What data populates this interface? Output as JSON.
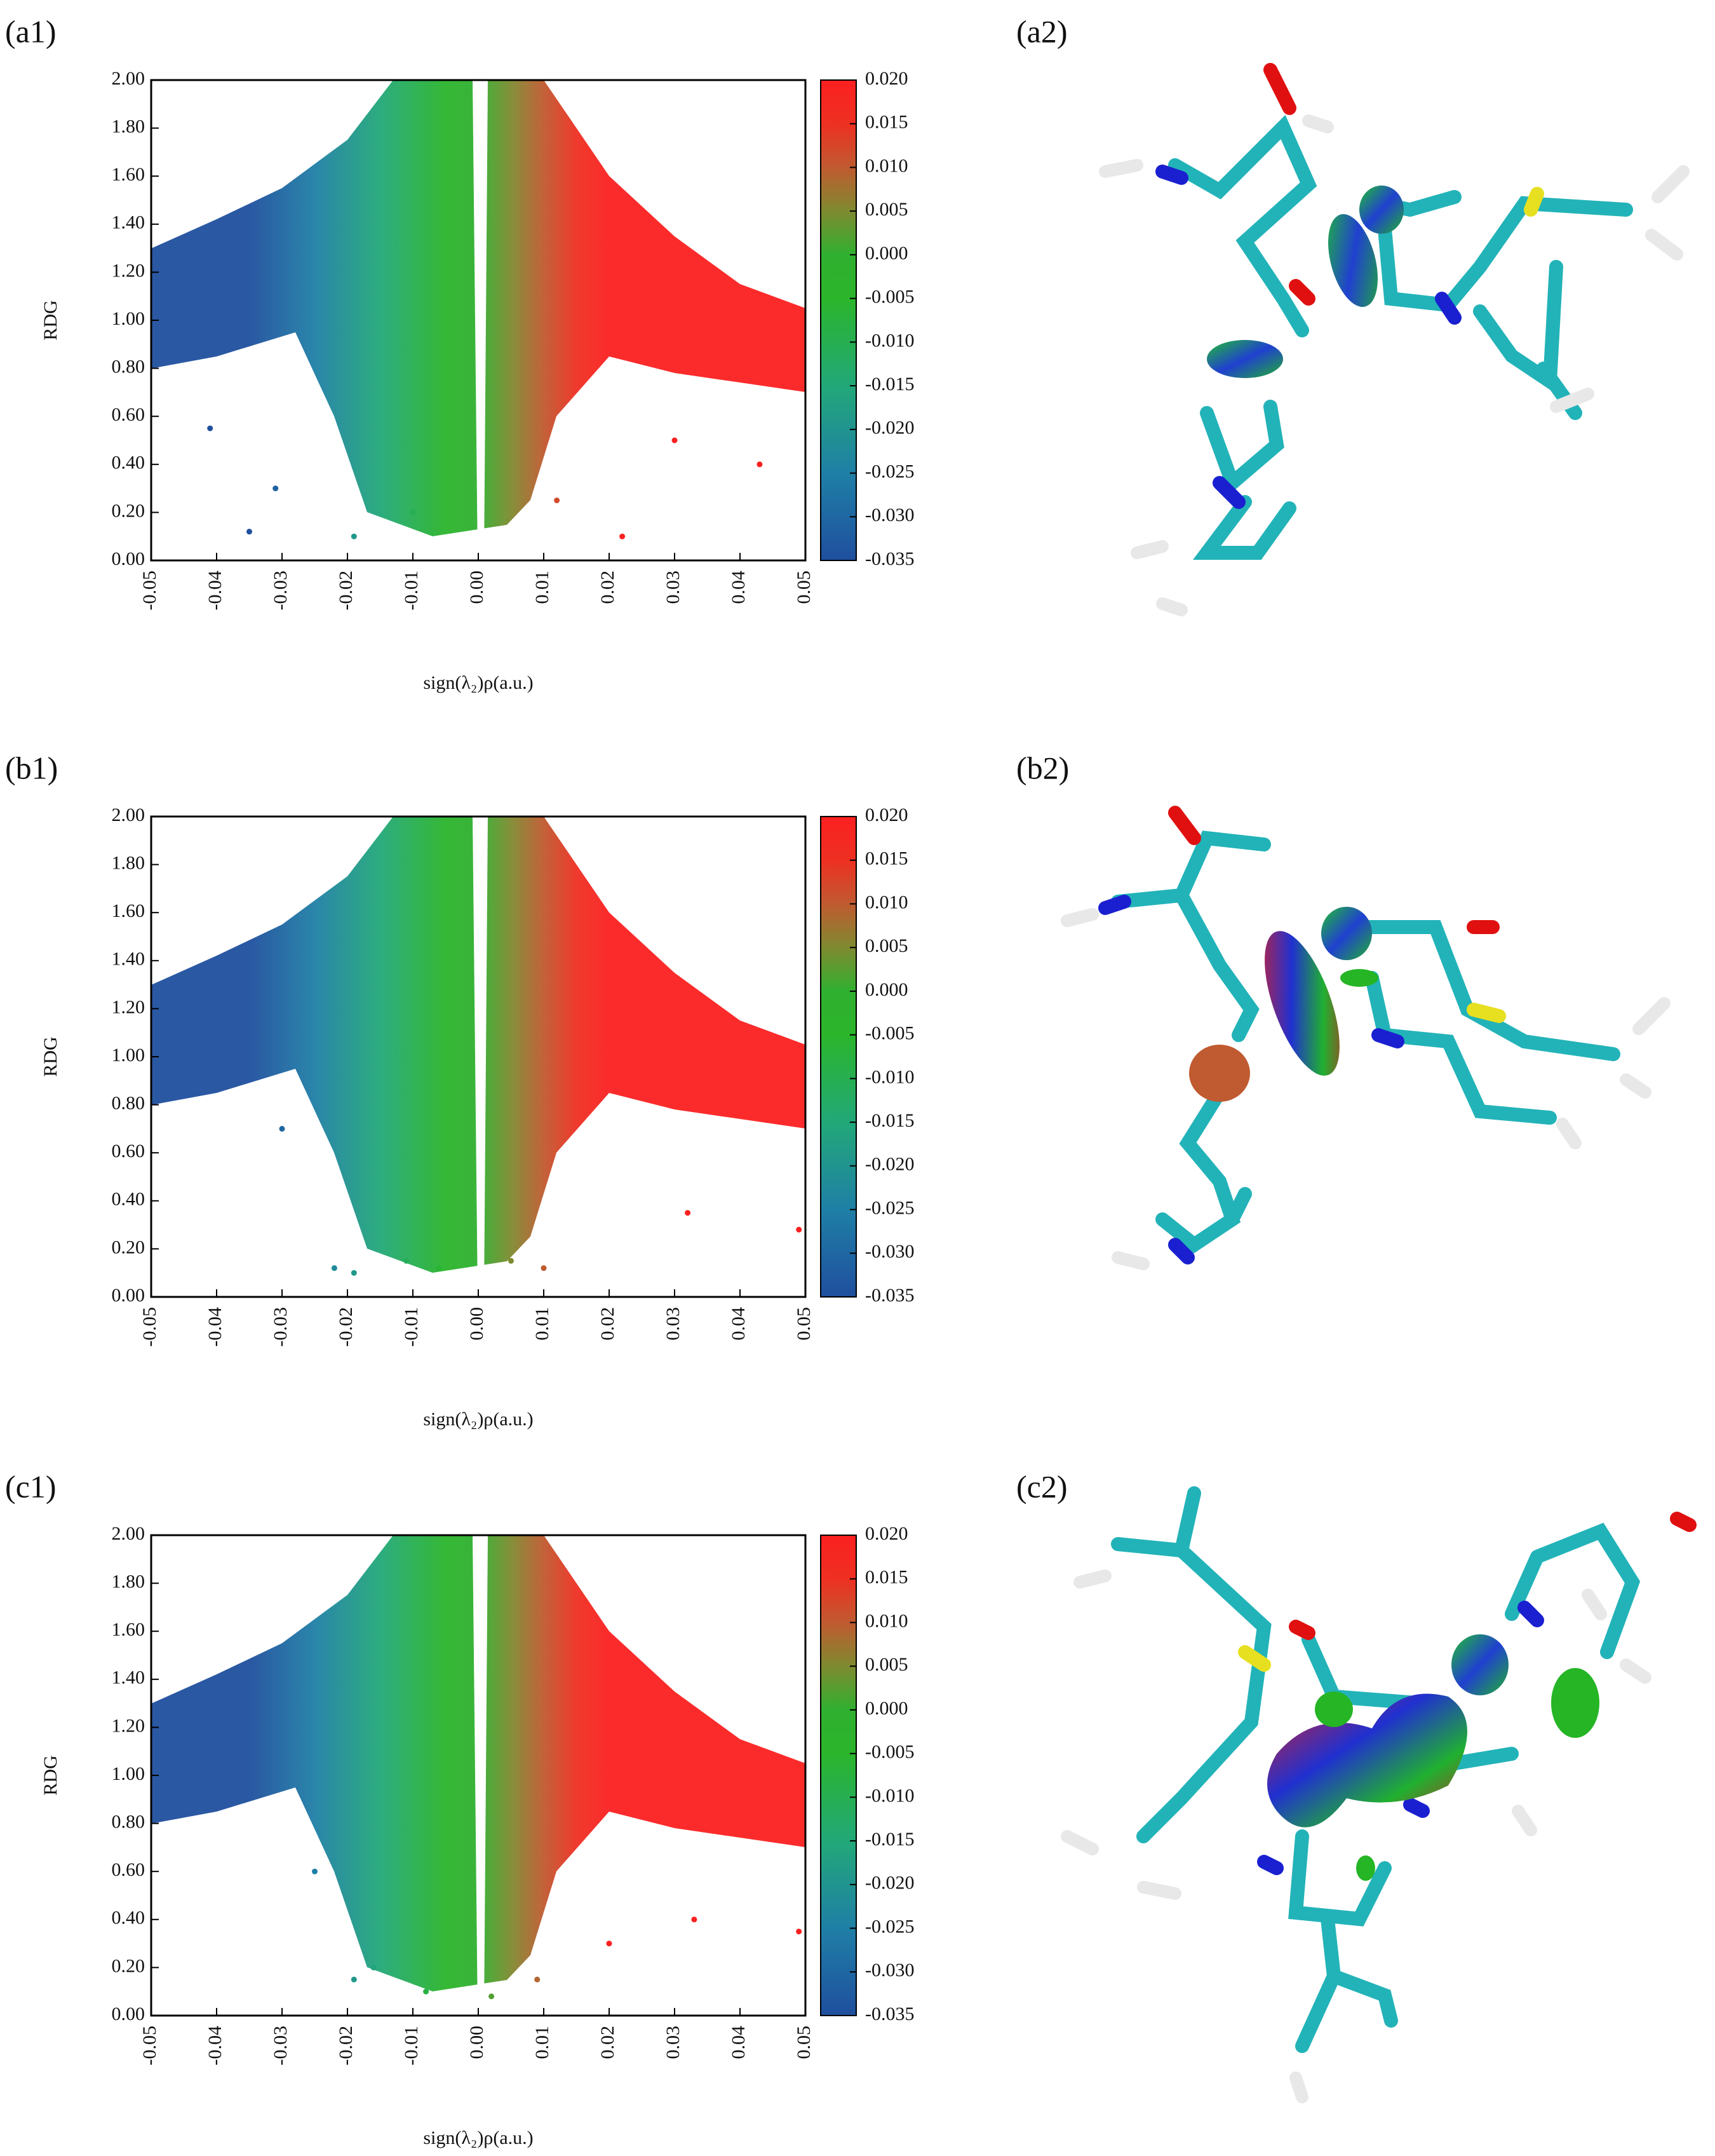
{
  "chart_data": [
    {
      "type": "scatter",
      "panel_label": "(a1)",
      "xlabel": "sign(λ₂)ρ(a.u.)",
      "ylabel": "RDG",
      "xlim": [
        -0.05,
        0.05
      ],
      "ylim": [
        0,
        2
      ],
      "xticks": [
        -0.05,
        -0.04,
        -0.03,
        -0.02,
        -0.01,
        {
          "value": 0,
          "label": "0.00"
        },
        0.01,
        0.02,
        0.03,
        0.04,
        0.05
      ],
      "yticks": [
        {
          "value": 0,
          "label": "0.00"
        },
        {
          "value": 0.2,
          "label": "0.20"
        },
        {
          "value": 0.4,
          "label": "0.40"
        },
        {
          "value": 0.6,
          "label": "0.60"
        },
        {
          "value": 0.8,
          "label": "0.80"
        },
        {
          "value": 1,
          "label": "1.00"
        },
        {
          "value": 1.2,
          "label": "1.20"
        },
        {
          "value": 1.4,
          "label": "1.40"
        },
        {
          "value": 1.6,
          "label": "1.60"
        },
        {
          "value": 1.8,
          "label": "1.80"
        },
        {
          "value": 2,
          "label": "2.00"
        }
      ],
      "x": [
        -0.035,
        -0.031,
        -0.019,
        -0.01,
        0.022,
        0.043,
        -0.041,
        0.012,
        0.03
      ],
      "y": [
        0.12,
        0.3,
        0.1,
        0.2,
        0.1,
        0.4,
        0.55,
        0.25,
        0.5
      ],
      "colorbar": {
        "lim": [
          -0.035,
          0.02
        ],
        "ticks": [
          {
            "value": 0.02,
            "label": "0.020"
          },
          0.015,
          {
            "value": 0.01,
            "label": "0.010"
          },
          0.005,
          {
            "value": 0,
            "label": "0.000"
          },
          -0.005,
          {
            "value": -0.01,
            "label": "-0.010"
          },
          -0.015,
          {
            "value": -0.02,
            "label": "-0.020"
          },
          -0.025,
          {
            "value": -0.03,
            "label": "-0.030"
          },
          -0.035
        ]
      },
      "colormap": [
        {
          "value": -0.035,
          "color": "#1f4f9e"
        },
        {
          "value": -0.025,
          "color": "#1f7fa6"
        },
        {
          "value": -0.015,
          "color": "#22a878"
        },
        {
          "value": -0.005,
          "color": "#2bb52b"
        },
        {
          "value": 0,
          "color": "#30b030"
        },
        {
          "value": 0.005,
          "color": "#7f8a30"
        },
        {
          "value": 0.01,
          "color": "#c05a30"
        },
        {
          "value": 0.015,
          "color": "#ee3022"
        },
        {
          "value": 0.02,
          "color": "#fb2020"
        }
      ]
    },
    {
      "type": "scatter",
      "panel_label": "(b1)",
      "xlabel": "sign(λ₂)ρ(a.u.)",
      "ylabel": "RDG",
      "xlim": [
        -0.05,
        0.05
      ],
      "ylim": [
        0,
        2
      ],
      "xticks": [
        -0.05,
        -0.04,
        -0.03,
        -0.02,
        -0.01,
        {
          "value": 0,
          "label": "0.00"
        },
        0.01,
        0.02,
        0.03,
        0.04,
        0.05
      ],
      "yticks": [
        {
          "value": 0,
          "label": "0.00"
        },
        {
          "value": 0.2,
          "label": "0.20"
        },
        {
          "value": 0.4,
          "label": "0.40"
        },
        {
          "value": 0.6,
          "label": "0.60"
        },
        {
          "value": 0.8,
          "label": "0.80"
        },
        {
          "value": 1,
          "label": "1.00"
        },
        {
          "value": 1.2,
          "label": "1.20"
        },
        {
          "value": 1.4,
          "label": "1.40"
        },
        {
          "value": 1.6,
          "label": "1.60"
        },
        {
          "value": 1.8,
          "label": "1.80"
        },
        {
          "value": 2,
          "label": "2.00"
        }
      ],
      "x": [
        -0.022,
        -0.019,
        -0.011,
        -0.006,
        0.005,
        0.01,
        0.032,
        0.049,
        -0.03
      ],
      "y": [
        0.12,
        0.1,
        0.15,
        0.12,
        0.15,
        0.12,
        0.35,
        0.28,
        0.7
      ],
      "colorbar": {
        "lim": [
          -0.035,
          0.02
        ],
        "ticks": [
          {
            "value": 0.02,
            "label": "0.020"
          },
          0.015,
          {
            "value": 0.01,
            "label": "0.010"
          },
          0.005,
          {
            "value": 0,
            "label": "0.000"
          },
          -0.005,
          {
            "value": -0.01,
            "label": "-0.010"
          },
          -0.015,
          {
            "value": -0.02,
            "label": "-0.020"
          },
          -0.025,
          {
            "value": -0.03,
            "label": "-0.030"
          },
          -0.035
        ]
      },
      "colormap": [
        {
          "value": -0.035,
          "color": "#1f4f9e"
        },
        {
          "value": -0.025,
          "color": "#1f7fa6"
        },
        {
          "value": -0.015,
          "color": "#22a878"
        },
        {
          "value": -0.005,
          "color": "#2bb52b"
        },
        {
          "value": 0,
          "color": "#30b030"
        },
        {
          "value": 0.005,
          "color": "#7f8a30"
        },
        {
          "value": 0.01,
          "color": "#c05a30"
        },
        {
          "value": 0.015,
          "color": "#ee3022"
        },
        {
          "value": 0.02,
          "color": "#fb2020"
        }
      ]
    },
    {
      "type": "scatter",
      "panel_label": "(c1)",
      "xlabel": "sign(λ₂)ρ(a.u.)",
      "ylabel": "RDG",
      "xlim": [
        -0.05,
        0.05
      ],
      "ylim": [
        0,
        2
      ],
      "xticks": [
        -0.05,
        -0.04,
        -0.03,
        -0.02,
        -0.01,
        {
          "value": 0,
          "label": "0.00"
        },
        0.01,
        0.02,
        0.03,
        0.04,
        0.05
      ],
      "yticks": [
        {
          "value": 0,
          "label": "0.00"
        },
        {
          "value": 0.2,
          "label": "0.20"
        },
        {
          "value": 0.4,
          "label": "0.40"
        },
        {
          "value": 0.6,
          "label": "0.60"
        },
        {
          "value": 0.8,
          "label": "0.80"
        },
        {
          "value": 1,
          "label": "1.00"
        },
        {
          "value": 1.2,
          "label": "1.20"
        },
        {
          "value": 1.4,
          "label": "1.40"
        },
        {
          "value": 1.6,
          "label": "1.60"
        },
        {
          "value": 1.8,
          "label": "1.80"
        },
        {
          "value": 2,
          "label": "2.00"
        }
      ],
      "x": [
        -0.019,
        -0.016,
        -0.008,
        0.002,
        0.009,
        0.02,
        0.033,
        0.049,
        -0.025
      ],
      "y": [
        0.15,
        0.2,
        0.1,
        0.08,
        0.15,
        0.3,
        0.4,
        0.35,
        0.6
      ],
      "colorbar": {
        "lim": [
          -0.035,
          0.02
        ],
        "ticks": [
          {
            "value": 0.02,
            "label": "0.020"
          },
          0.015,
          {
            "value": 0.01,
            "label": "0.010"
          },
          0.005,
          {
            "value": 0,
            "label": "0.000"
          },
          -0.005,
          {
            "value": -0.01,
            "label": "-0.010"
          },
          -0.015,
          {
            "value": -0.02,
            "label": "-0.020"
          },
          -0.025,
          {
            "value": -0.03,
            "label": "-0.030"
          },
          -0.035
        ]
      },
      "colormap": [
        {
          "value": -0.035,
          "color": "#1f4f9e"
        },
        {
          "value": -0.025,
          "color": "#1f7fa6"
        },
        {
          "value": -0.015,
          "color": "#22a878"
        },
        {
          "value": -0.005,
          "color": "#2bb52b"
        },
        {
          "value": 0,
          "color": "#30b030"
        },
        {
          "value": 0.005,
          "color": "#7f8a30"
        },
        {
          "value": 0.01,
          "color": "#c05a30"
        },
        {
          "value": 0.015,
          "color": "#ee3022"
        },
        {
          "value": 0.02,
          "color": "#fb2020"
        }
      ]
    }
  ],
  "images": [
    {
      "label": "(a2)"
    },
    {
      "label": "(b2)"
    },
    {
      "label": "(c2)"
    }
  ]
}
